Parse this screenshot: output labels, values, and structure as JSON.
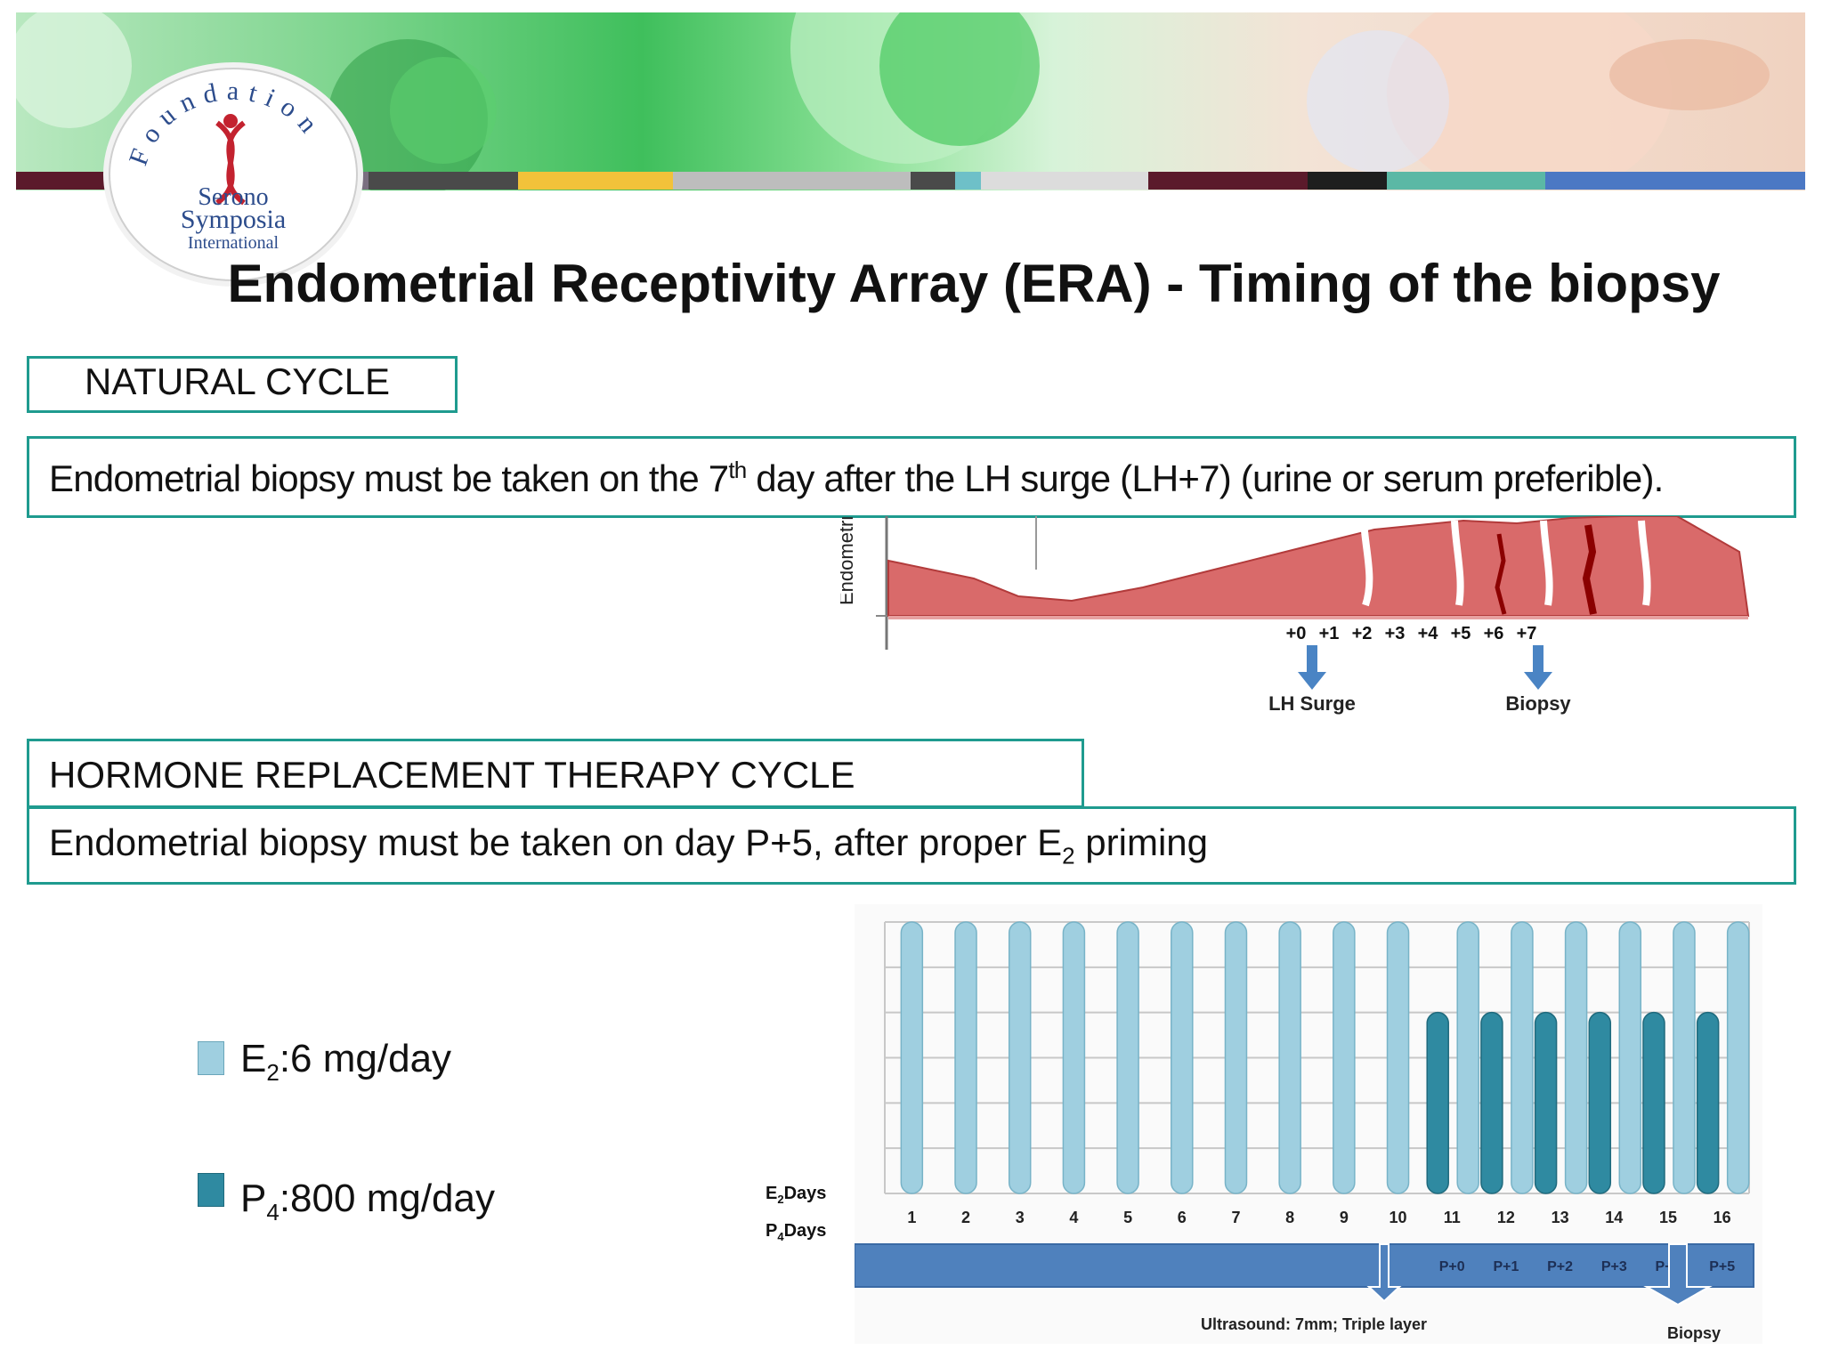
{
  "title": "Endometrial Receptivity Array (ERA) - Timing of the biopsy",
  "logo": {
    "ring_text": "Foundation",
    "line1": "Serono",
    "line2": "Symposia",
    "line3": "International"
  },
  "natural_cycle": {
    "heading": "NATURAL CYCLE",
    "text_before": "Endometrial biopsy must be taken on the 7",
    "text_sup": "th",
    "text_after": " day after the LH surge (LH+7) (urine or serum preferible)."
  },
  "endometrium_diagram": {
    "axis_label": "Endometriu",
    "day_labels": [
      "+0",
      "+1",
      "+2",
      "+3",
      "+4",
      "+5",
      "+6",
      "+7"
    ],
    "lh_surge_label": "LH Surge",
    "biopsy_label": "Biopsy"
  },
  "hrt_cycle": {
    "heading": "HORMONE REPLACEMENT THERAPY CYCLE",
    "text_before": "Endometrial biopsy must be taken on day P+5, after proper E",
    "text_sub": "2",
    "text_after": " priming"
  },
  "legend": [
    {
      "prefix": "E",
      "sub": "2",
      "suffix": ":6 mg/day",
      "color": "#9fcfe0"
    },
    {
      "prefix": "P",
      "sub": "4",
      "suffix": ":800 mg/day",
      "color": "#2f8aa1"
    }
  ],
  "chart_data": {
    "type": "bar",
    "categories": [
      "1",
      "2",
      "3",
      "4",
      "5",
      "6",
      "7",
      "8",
      "9",
      "10",
      "11",
      "12",
      "13",
      "14",
      "15",
      "16"
    ],
    "series": [
      {
        "name": "E2:6 mg/day",
        "values": [
          6,
          6,
          6,
          6,
          6,
          6,
          6,
          6,
          6,
          6,
          6,
          6,
          6,
          6,
          6,
          6
        ],
        "color": "#9fcfe0"
      },
      {
        "name": "P4:800 mg/day",
        "values": [
          0,
          0,
          0,
          0,
          0,
          0,
          0,
          0,
          0,
          0,
          4,
          4,
          4,
          4,
          4,
          4
        ],
        "color": "#2f8aa1"
      }
    ],
    "ylim": [
      0,
      6
    ],
    "row_label_e2": {
      "prefix": "E",
      "sub": "2",
      "suffix": "Days"
    },
    "row_label_p4": {
      "prefix": "P",
      "sub": "4",
      "suffix": "Days"
    },
    "p_days": [
      "P+0",
      "P+1",
      "P+2",
      "P+3",
      "P+4",
      "P+5"
    ],
    "ultrasound_label": "Ultrasound: 7mm; Triple layer",
    "biopsy_label": "Biopsy"
  }
}
